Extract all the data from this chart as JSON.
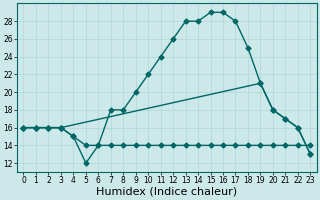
{
  "xlabel": "Humidex (Indice chaleur)",
  "bg_color": "#cce8e8",
  "line_color": "#006666",
  "grid_color": "#b0d8d8",
  "xlim": [
    -0.5,
    23.5
  ],
  "ylim": [
    11,
    30
  ],
  "xticks": [
    0,
    1,
    2,
    3,
    4,
    5,
    6,
    7,
    8,
    9,
    10,
    11,
    12,
    13,
    14,
    15,
    16,
    17,
    18,
    19,
    20,
    21,
    22,
    23
  ],
  "yticks": [
    12,
    14,
    16,
    18,
    20,
    22,
    24,
    26,
    28
  ],
  "line1_x": [
    0,
    1,
    2,
    3,
    4,
    5,
    6,
    7,
    8,
    9,
    10,
    11,
    12,
    13,
    14,
    15,
    16,
    17,
    18,
    19,
    20,
    21,
    22,
    23
  ],
  "line1_y": [
    16,
    16,
    16,
    16,
    15,
    12,
    14,
    18,
    18,
    20,
    22,
    24,
    26,
    28,
    28,
    29,
    29,
    28,
    25,
    21,
    18,
    17,
    16,
    13
  ],
  "line2_x": [
    0,
    1,
    2,
    3,
    4,
    5,
    6,
    7,
    8,
    9,
    10,
    11,
    12,
    13,
    14,
    15,
    16,
    17,
    18,
    19,
    20,
    21,
    22,
    23
  ],
  "line2_y": [
    16,
    16,
    16,
    16,
    15,
    14,
    14,
    14,
    14,
    14,
    14,
    14,
    14,
    14,
    14,
    14,
    14,
    14,
    14,
    14,
    14,
    14,
    14,
    14
  ],
  "line3_x": [
    0,
    1,
    2,
    3,
    19,
    20,
    21,
    22,
    23
  ],
  "line3_y": [
    16,
    16,
    16,
    16,
    21,
    18,
    17,
    16,
    13
  ],
  "marker": "D",
  "marker_size": 2.5,
  "line_width": 1.0,
  "xlabel_fontsize": 8,
  "tick_fontsize": 5.5
}
